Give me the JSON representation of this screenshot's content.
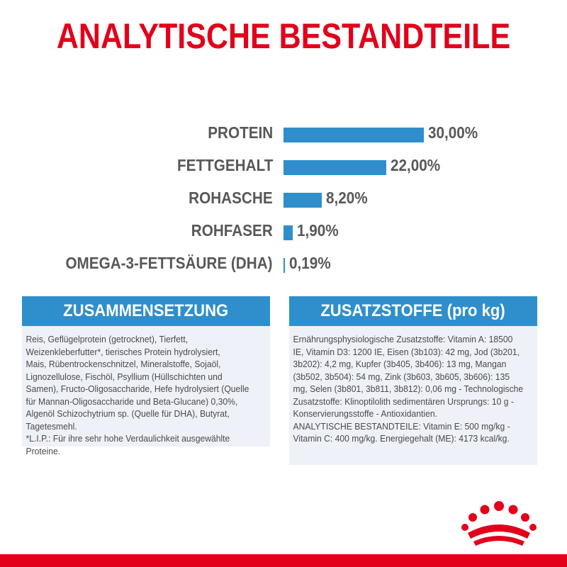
{
  "title": "ANALYTISCHE BESTANDTEILE",
  "colors": {
    "accent": "#e2001a",
    "bar": "#2e8fcc",
    "panel_bg": "#eef1f7",
    "text": "#58585a"
  },
  "chart_data": {
    "type": "bar",
    "orientation": "horizontal",
    "categories": [
      "PROTEIN",
      "FETTGEHALT",
      "ROHASCHE",
      "ROHFASER",
      "OMEGA-3-FETTSÄURE (DHA)"
    ],
    "values": [
      30.0,
      22.0,
      8.2,
      1.9,
      0.19
    ],
    "value_labels": [
      "30,00%",
      "22,00%",
      "8,20%",
      "1,90%",
      "0,19%"
    ],
    "unit": "%",
    "title": "",
    "xlabel": "",
    "ylabel": "",
    "grid": false
  },
  "composition": {
    "heading": "ZUSAMMENSETZUNG",
    "text": "Reis, Geflügelprotein (getrocknet), Tierfett,\nWeizenkleberfutter*, tierisches Protein hydrolysiert,\nMais, Rübentrockenschnitzel, Mineralstoffe, Sojaöl,\nLignozellulose, Fischöl, Psyllium (Hüllschichten und\nSamen), Fructo-Oligosaccharide, Hefe hydrolysiert (Quelle\nfür Mannan-Oligosaccharide und Beta-Glucane) 0,30%,\nAlgenöl Schizochytrium sp. (Quelle für DHA), Butyrat,\nTagetesmehl.\n*L.I.P.: Für ihre sehr hohe Verdaulichkeit ausgewählte\nProteine."
  },
  "additives": {
    "heading": "ZUSATZSTOFFE (pro kg)",
    "text": "Ernährungsphysiologische Zusatzstoffe: Vitamin A: 18500\nIE, Vitamin D3: 1200 IE, Eisen (3b103): 42 mg, Jod (3b201,\n3b202): 4,2 mg, Kupfer (3b405, 3b406): 13 mg, Mangan\n(3b502, 3b504): 54 mg, Zink (3b603, 3b605, 3b606): 135\nmg, Selen (3b801, 3b811, 3b812): 0,06 mg - Technologische\nZusatzstoffe: Klinoptilolith sedimentären Ursprungs: 10 g -\nKonservierungsstoffe - Antioxidantien.\nANALYTISCHE BESTANDTEILE: Vitamin E: 500 mg/kg -\nVitamin C: 400 mg/kg. Energiegehalt (ME): 4173 kcal/kg."
  },
  "logo": {
    "icon": "royal-canin-crown-icon"
  }
}
